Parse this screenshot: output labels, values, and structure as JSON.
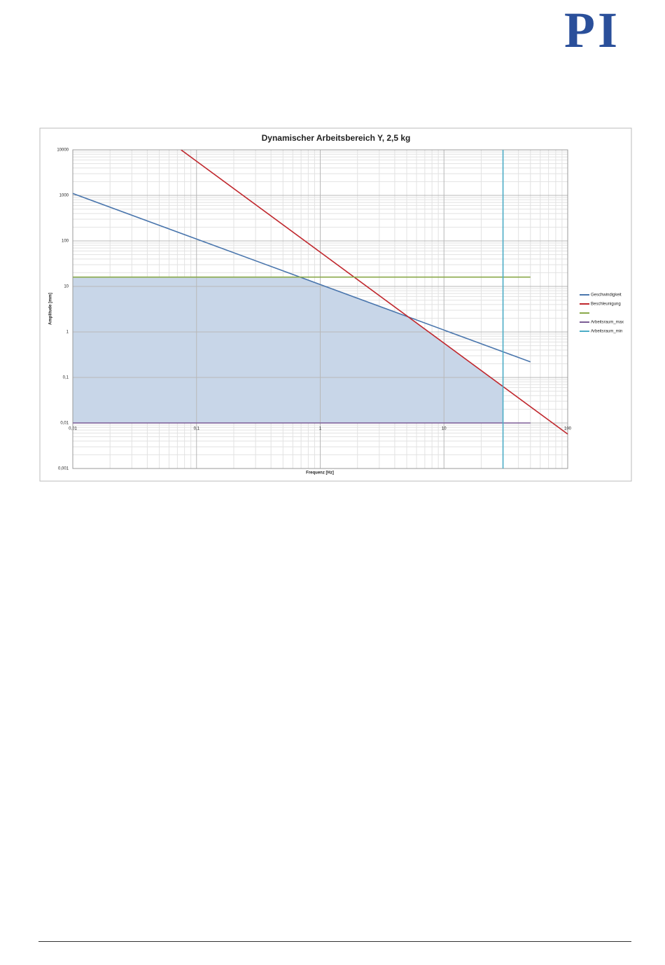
{
  "logo": "PI",
  "chart_data": {
    "type": "line",
    "title": "Dynamischer Arbeitsbereich Y, 2,5 kg",
    "xlabel": "Frequenz [Hz]",
    "ylabel": "Amplitude [mm]",
    "xscale": "log",
    "yscale": "log",
    "grid": true,
    "minor_grid": true,
    "legend": "right",
    "xlim": [
      0.01,
      100
    ],
    "ylim": [
      0.001,
      10000
    ],
    "xticks": [
      {
        "value": 0.01,
        "label": "0,01"
      },
      {
        "value": 0.1,
        "label": "0,1"
      },
      1,
      10,
      100
    ],
    "yticks": [
      {
        "value": 0.001,
        "label": "0,001"
      },
      {
        "value": 0.01,
        "label": "0,01"
      },
      {
        "value": 0.1,
        "label": "0,1"
      },
      1,
      10,
      100,
      1000,
      10000
    ],
    "series": [
      {
        "name": "Geschwindigkeit",
        "color": "#4a76ad",
        "x": [
          0.01,
          50
        ],
        "values": [
          1100,
          0.22
        ]
      },
      {
        "name": "Beschleunigung",
        "color": "#c0272d",
        "x": [
          0.075,
          100
        ],
        "values": [
          10000,
          0.0057
        ]
      },
      {
        "color": "#8aa94a",
        "x": [
          0.01,
          50
        ],
        "values": [
          16,
          16
        ]
      },
      {
        "name": "Arbeitsraum_max",
        "color": "#7b5c95",
        "x": [
          0.01,
          50
        ],
        "values": [
          0.01,
          0.01
        ]
      },
      {
        "name": "Arbeitsraum_min",
        "color": "#4bacc6",
        "x": [
          30,
          30
        ],
        "values": [
          10000,
          0.001
        ]
      }
    ]
  }
}
